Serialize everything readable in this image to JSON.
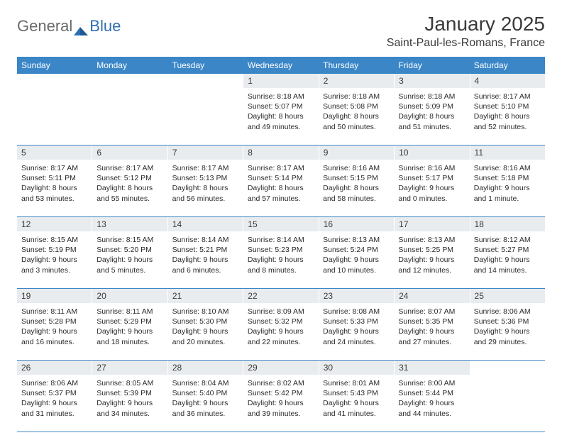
{
  "brand": {
    "part1": "General",
    "part2": "Blue"
  },
  "title": "January 2025",
  "location": "Saint-Paul-les-Romans, France",
  "colors": {
    "header_bg": "#3b86c7",
    "header_text": "#ffffff",
    "daynum_bg": "#e9ecef",
    "border": "#3b86c7",
    "text": "#2a2a2a",
    "title_text": "#3a3a3a",
    "logo_gray": "#6a6a6a",
    "logo_blue": "#2f6fb0",
    "page_bg": "#ffffff"
  },
  "day_names": [
    "Sunday",
    "Monday",
    "Tuesday",
    "Wednesday",
    "Thursday",
    "Friday",
    "Saturday"
  ],
  "weeks": [
    [
      null,
      null,
      null,
      {
        "n": "1",
        "sr": "8:18 AM",
        "ss": "5:07 PM",
        "dl1": "Daylight: 8 hours",
        "dl2": "and 49 minutes."
      },
      {
        "n": "2",
        "sr": "8:18 AM",
        "ss": "5:08 PM",
        "dl1": "Daylight: 8 hours",
        "dl2": "and 50 minutes."
      },
      {
        "n": "3",
        "sr": "8:18 AM",
        "ss": "5:09 PM",
        "dl1": "Daylight: 8 hours",
        "dl2": "and 51 minutes."
      },
      {
        "n": "4",
        "sr": "8:17 AM",
        "ss": "5:10 PM",
        "dl1": "Daylight: 8 hours",
        "dl2": "and 52 minutes."
      }
    ],
    [
      {
        "n": "5",
        "sr": "8:17 AM",
        "ss": "5:11 PM",
        "dl1": "Daylight: 8 hours",
        "dl2": "and 53 minutes."
      },
      {
        "n": "6",
        "sr": "8:17 AM",
        "ss": "5:12 PM",
        "dl1": "Daylight: 8 hours",
        "dl2": "and 55 minutes."
      },
      {
        "n": "7",
        "sr": "8:17 AM",
        "ss": "5:13 PM",
        "dl1": "Daylight: 8 hours",
        "dl2": "and 56 minutes."
      },
      {
        "n": "8",
        "sr": "8:17 AM",
        "ss": "5:14 PM",
        "dl1": "Daylight: 8 hours",
        "dl2": "and 57 minutes."
      },
      {
        "n": "9",
        "sr": "8:16 AM",
        "ss": "5:15 PM",
        "dl1": "Daylight: 8 hours",
        "dl2": "and 58 minutes."
      },
      {
        "n": "10",
        "sr": "8:16 AM",
        "ss": "5:17 PM",
        "dl1": "Daylight: 9 hours",
        "dl2": "and 0 minutes."
      },
      {
        "n": "11",
        "sr": "8:16 AM",
        "ss": "5:18 PM",
        "dl1": "Daylight: 9 hours",
        "dl2": "and 1 minute."
      }
    ],
    [
      {
        "n": "12",
        "sr": "8:15 AM",
        "ss": "5:19 PM",
        "dl1": "Daylight: 9 hours",
        "dl2": "and 3 minutes."
      },
      {
        "n": "13",
        "sr": "8:15 AM",
        "ss": "5:20 PM",
        "dl1": "Daylight: 9 hours",
        "dl2": "and 5 minutes."
      },
      {
        "n": "14",
        "sr": "8:14 AM",
        "ss": "5:21 PM",
        "dl1": "Daylight: 9 hours",
        "dl2": "and 6 minutes."
      },
      {
        "n": "15",
        "sr": "8:14 AM",
        "ss": "5:23 PM",
        "dl1": "Daylight: 9 hours",
        "dl2": "and 8 minutes."
      },
      {
        "n": "16",
        "sr": "8:13 AM",
        "ss": "5:24 PM",
        "dl1": "Daylight: 9 hours",
        "dl2": "and 10 minutes."
      },
      {
        "n": "17",
        "sr": "8:13 AM",
        "ss": "5:25 PM",
        "dl1": "Daylight: 9 hours",
        "dl2": "and 12 minutes."
      },
      {
        "n": "18",
        "sr": "8:12 AM",
        "ss": "5:27 PM",
        "dl1": "Daylight: 9 hours",
        "dl2": "and 14 minutes."
      }
    ],
    [
      {
        "n": "19",
        "sr": "8:11 AM",
        "ss": "5:28 PM",
        "dl1": "Daylight: 9 hours",
        "dl2": "and 16 minutes."
      },
      {
        "n": "20",
        "sr": "8:11 AM",
        "ss": "5:29 PM",
        "dl1": "Daylight: 9 hours",
        "dl2": "and 18 minutes."
      },
      {
        "n": "21",
        "sr": "8:10 AM",
        "ss": "5:30 PM",
        "dl1": "Daylight: 9 hours",
        "dl2": "and 20 minutes."
      },
      {
        "n": "22",
        "sr": "8:09 AM",
        "ss": "5:32 PM",
        "dl1": "Daylight: 9 hours",
        "dl2": "and 22 minutes."
      },
      {
        "n": "23",
        "sr": "8:08 AM",
        "ss": "5:33 PM",
        "dl1": "Daylight: 9 hours",
        "dl2": "and 24 minutes."
      },
      {
        "n": "24",
        "sr": "8:07 AM",
        "ss": "5:35 PM",
        "dl1": "Daylight: 9 hours",
        "dl2": "and 27 minutes."
      },
      {
        "n": "25",
        "sr": "8:06 AM",
        "ss": "5:36 PM",
        "dl1": "Daylight: 9 hours",
        "dl2": "and 29 minutes."
      }
    ],
    [
      {
        "n": "26",
        "sr": "8:06 AM",
        "ss": "5:37 PM",
        "dl1": "Daylight: 9 hours",
        "dl2": "and 31 minutes."
      },
      {
        "n": "27",
        "sr": "8:05 AM",
        "ss": "5:39 PM",
        "dl1": "Daylight: 9 hours",
        "dl2": "and 34 minutes."
      },
      {
        "n": "28",
        "sr": "8:04 AM",
        "ss": "5:40 PM",
        "dl1": "Daylight: 9 hours",
        "dl2": "and 36 minutes."
      },
      {
        "n": "29",
        "sr": "8:02 AM",
        "ss": "5:42 PM",
        "dl1": "Daylight: 9 hours",
        "dl2": "and 39 minutes."
      },
      {
        "n": "30",
        "sr": "8:01 AM",
        "ss": "5:43 PM",
        "dl1": "Daylight: 9 hours",
        "dl2": "and 41 minutes."
      },
      {
        "n": "31",
        "sr": "8:00 AM",
        "ss": "5:44 PM",
        "dl1": "Daylight: 9 hours",
        "dl2": "and 44 minutes."
      },
      null
    ]
  ],
  "labels": {
    "sunrise": "Sunrise:",
    "sunset": "Sunset:"
  }
}
